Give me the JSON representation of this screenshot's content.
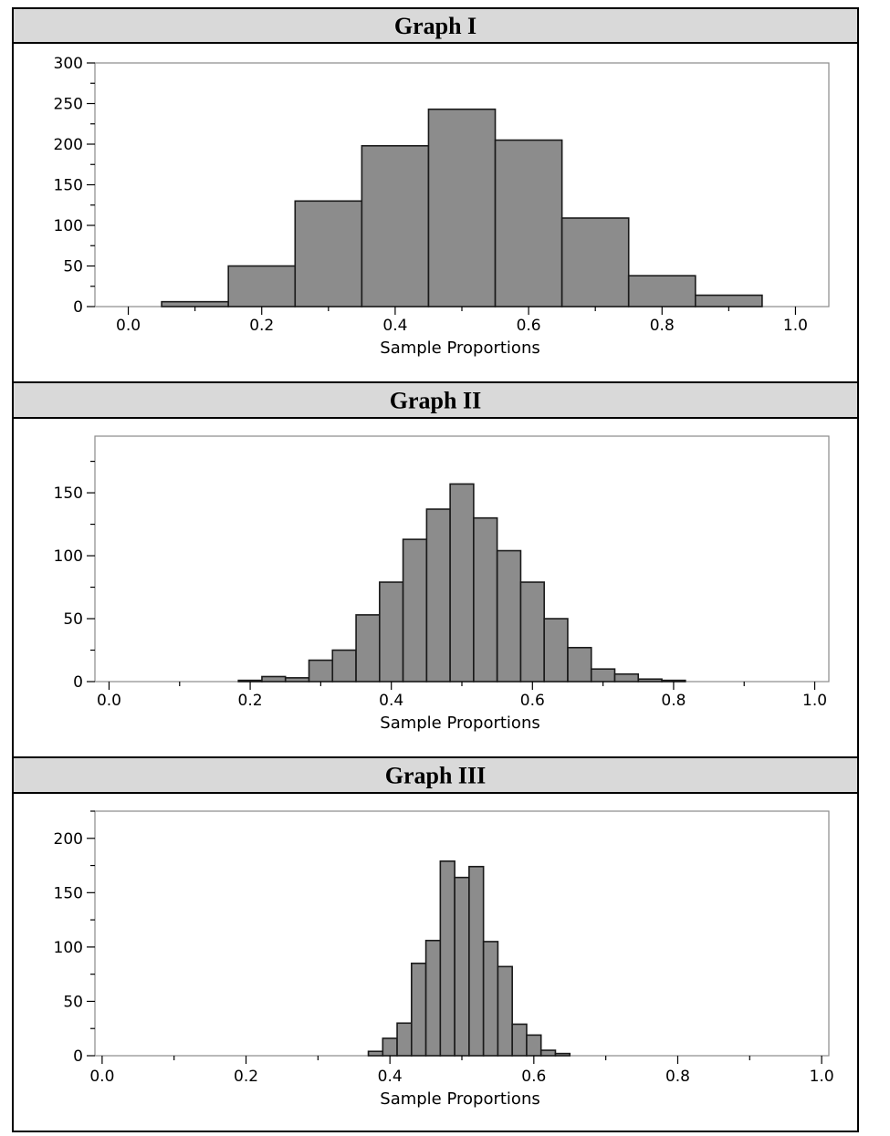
{
  "chart_data": [
    {
      "type": "bar",
      "title": "Graph I",
      "xlabel": "Sample Proportions",
      "ylabel": "",
      "xlim": [
        -0.05,
        1.05
      ],
      "ylim": [
        0,
        300
      ],
      "xticks": [
        "0.0",
        "0.2",
        "0.4",
        "0.6",
        "0.8",
        "1.0"
      ],
      "yticks": [
        "0",
        "50",
        "100",
        "150",
        "200",
        "250",
        "300"
      ],
      "bin_width": 0.1,
      "bins": [
        {
          "x": 0.1,
          "value": 6
        },
        {
          "x": 0.2,
          "value": 50
        },
        {
          "x": 0.3,
          "value": 130
        },
        {
          "x": 0.4,
          "value": 198
        },
        {
          "x": 0.5,
          "value": 243
        },
        {
          "x": 0.6,
          "value": 205
        },
        {
          "x": 0.7,
          "value": 109
        },
        {
          "x": 0.8,
          "value": 38
        },
        {
          "x": 0.9,
          "value": 14
        }
      ],
      "grid": false,
      "legend": "none"
    },
    {
      "type": "bar",
      "title": "Graph II",
      "xlabel": "Sample Proportions",
      "ylabel": "",
      "xlim": [
        -0.02,
        1.02
      ],
      "ylim": [
        0,
        195
      ],
      "xticks": [
        "0.0",
        "0.2",
        "0.4",
        "0.6",
        "0.8",
        "1.0"
      ],
      "yticks": [
        "0",
        "50",
        "100",
        "150"
      ],
      "bin_width": 0.0333,
      "bins": [
        {
          "x": 0.2,
          "value": 1
        },
        {
          "x": 0.2333,
          "value": 4
        },
        {
          "x": 0.2667,
          "value": 3
        },
        {
          "x": 0.3,
          "value": 17
        },
        {
          "x": 0.3333,
          "value": 25
        },
        {
          "x": 0.3667,
          "value": 53
        },
        {
          "x": 0.4,
          "value": 79
        },
        {
          "x": 0.4333,
          "value": 113
        },
        {
          "x": 0.4667,
          "value": 137
        },
        {
          "x": 0.5,
          "value": 157
        },
        {
          "x": 0.5333,
          "value": 130
        },
        {
          "x": 0.5667,
          "value": 104
        },
        {
          "x": 0.6,
          "value": 79
        },
        {
          "x": 0.6333,
          "value": 50
        },
        {
          "x": 0.6667,
          "value": 27
        },
        {
          "x": 0.7,
          "value": 10
        },
        {
          "x": 0.7333,
          "value": 6
        },
        {
          "x": 0.7667,
          "value": 2
        },
        {
          "x": 0.8,
          "value": 1
        }
      ],
      "grid": false,
      "legend": "none"
    },
    {
      "type": "bar",
      "title": "Graph III",
      "xlabel": "Sample Proportions",
      "ylabel": "",
      "xlim": [
        -0.01,
        1.01
      ],
      "ylim": [
        0,
        225
      ],
      "xticks": [
        "0.0",
        "0.2",
        "0.4",
        "0.6",
        "0.8",
        "1.0"
      ],
      "yticks": [
        "0",
        "50",
        "100",
        "150",
        "200"
      ],
      "bin_width": 0.02,
      "bins": [
        {
          "x": 0.38,
          "value": 4
        },
        {
          "x": 0.4,
          "value": 16
        },
        {
          "x": 0.42,
          "value": 30
        },
        {
          "x": 0.44,
          "value": 85
        },
        {
          "x": 0.46,
          "value": 106
        },
        {
          "x": 0.48,
          "value": 179
        },
        {
          "x": 0.5,
          "value": 164
        },
        {
          "x": 0.52,
          "value": 174
        },
        {
          "x": 0.54,
          "value": 105
        },
        {
          "x": 0.56,
          "value": 82
        },
        {
          "x": 0.58,
          "value": 29
        },
        {
          "x": 0.6,
          "value": 19
        },
        {
          "x": 0.62,
          "value": 5
        },
        {
          "x": 0.64,
          "value": 2
        }
      ],
      "grid": false,
      "legend": "none"
    }
  ],
  "colors": {
    "bar_fill": "#8c8c8c",
    "bar_stroke": "#1a1a1a",
    "header_fill": "#d9d9d9",
    "frame": "#000000",
    "plot_border": "#8a8a8a"
  }
}
